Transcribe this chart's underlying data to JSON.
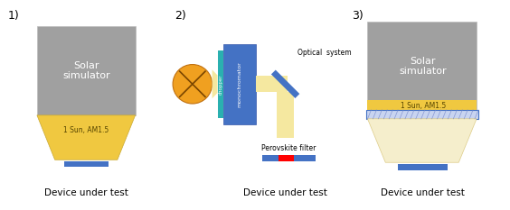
{
  "bg_color": "#ffffff",
  "gray_box_color": "#a0a0a0",
  "yellow_trap_color": "#f0c840",
  "yellow_light_color": "#f5e8a0",
  "blue_bar_color": "#4472c4",
  "blue_box_color": "#4472c4",
  "teal_bar_color": "#2ab0b0",
  "red_bar_color": "#ff0000",
  "orange_circle_color": "#f0a020",
  "label_color": "#000000",
  "p1_label": "1)",
  "p2_label": "2)",
  "p3_label": "3)",
  "solar_text": "Solar\nsimulator",
  "sun_text": "1 Sun, AM1.5",
  "device_text": "Device under test",
  "optical_text": "Optical  system",
  "perov_text": "Perovskite filter",
  "chopper_text": "chopper",
  "mono_text": "monochromator"
}
